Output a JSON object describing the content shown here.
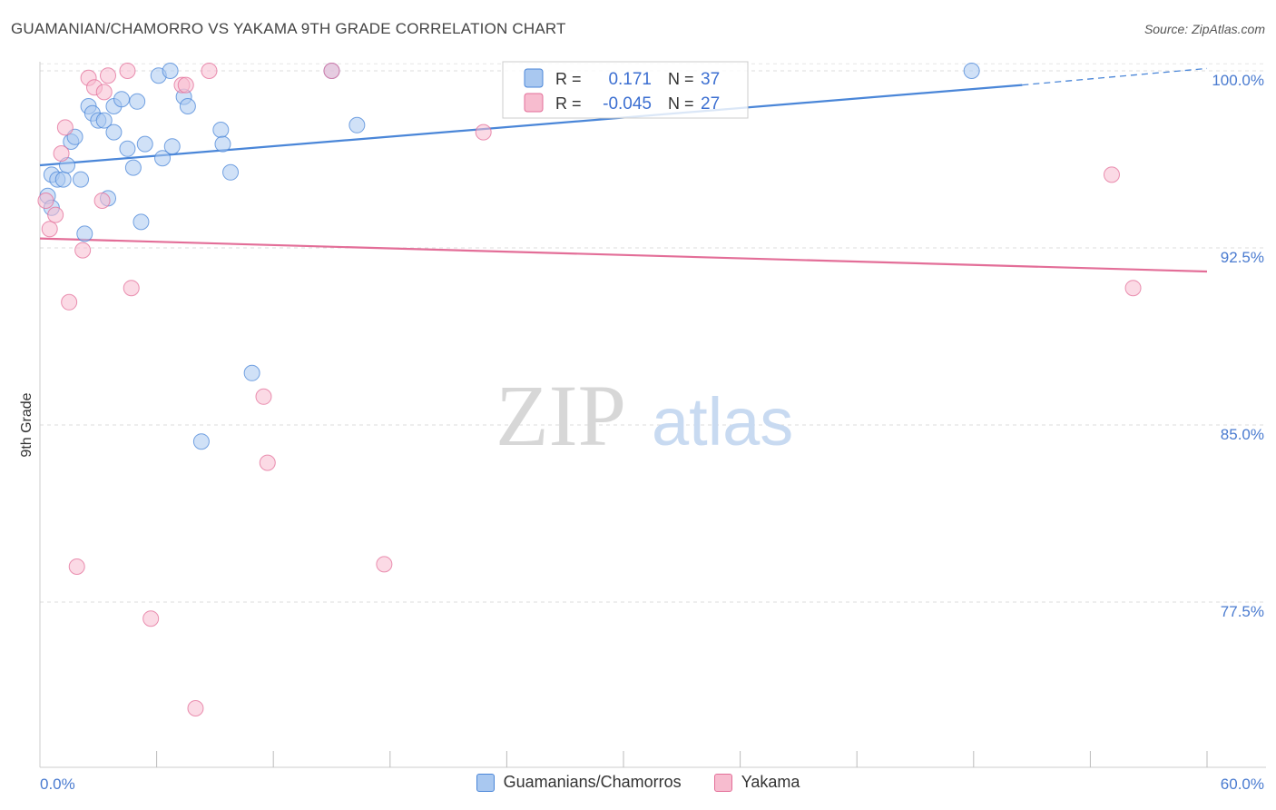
{
  "title": "GUAMANIAN/CHAMORRO VS YAKAMA 9TH GRADE CORRELATION CHART",
  "source": "Source: ZipAtlas.com",
  "watermark": {
    "zip": "ZIP",
    "atlas": "atlas"
  },
  "chart_data": {
    "type": "scatter",
    "xlabel": "",
    "ylabel": "9th Grade",
    "xlim": [
      0,
      60
    ],
    "ylim": [
      70.5,
      101
    ],
    "x_tick_labels": [
      "0.0%",
      "60.0%"
    ],
    "y_ticks": [
      77.5,
      85.0,
      92.5,
      100.0
    ],
    "y_tick_labels": [
      "77.5%",
      "85.0%",
      "92.5%",
      "100.0%"
    ],
    "grid": true,
    "legend": {
      "r_label": "R =",
      "n_label": "N =",
      "items": [
        {
          "r": "0.171",
          "n": "37"
        },
        {
          "r": "-0.045",
          "n": "27"
        }
      ]
    },
    "series": [
      {
        "name": "Guamanians/Chamorros",
        "color": "#4a86d8",
        "fill": "#a9c8f0",
        "trend": {
          "x0": 0,
          "y0": 96.0,
          "x1": 50.5,
          "y1": 99.4,
          "dash_x1": 60,
          "dash_y1": 100.1
        },
        "points": [
          [
            0.4,
            94.7
          ],
          [
            0.6,
            94.2
          ],
          [
            0.6,
            95.6
          ],
          [
            0.9,
            95.4
          ],
          [
            1.2,
            95.4
          ],
          [
            1.4,
            96.0
          ],
          [
            1.6,
            97.0
          ],
          [
            1.8,
            97.2
          ],
          [
            2.1,
            95.4
          ],
          [
            2.3,
            93.1
          ],
          [
            2.5,
            98.5
          ],
          [
            2.7,
            98.2
          ],
          [
            3.0,
            97.9
          ],
          [
            3.3,
            97.9
          ],
          [
            3.5,
            94.6
          ],
          [
            3.8,
            97.4
          ],
          [
            3.8,
            98.5
          ],
          [
            4.2,
            98.8
          ],
          [
            4.5,
            96.7
          ],
          [
            4.8,
            95.9
          ],
          [
            5.0,
            98.7
          ],
          [
            5.2,
            93.6
          ],
          [
            5.4,
            96.9
          ],
          [
            6.1,
            99.8
          ],
          [
            6.3,
            96.3
          ],
          [
            6.7,
            100.0
          ],
          [
            6.8,
            96.8
          ],
          [
            7.4,
            98.9
          ],
          [
            7.6,
            98.5
          ],
          [
            8.3,
            84.3
          ],
          [
            9.3,
            97.5
          ],
          [
            9.4,
            96.9
          ],
          [
            9.8,
            95.7
          ],
          [
            10.9,
            87.2
          ],
          [
            15.0,
            100.0
          ],
          [
            16.3,
            97.7
          ],
          [
            47.9,
            100.0
          ]
        ]
      },
      {
        "name": "Yakama",
        "color": "#e36e98",
        "fill": "#f7bccf",
        "trend": {
          "x0": 0,
          "y0": 92.9,
          "x1": 60,
          "y1": 91.5
        },
        "points": [
          [
            0.3,
            94.5
          ],
          [
            0.5,
            93.3
          ],
          [
            0.8,
            93.9
          ],
          [
            1.1,
            96.5
          ],
          [
            1.3,
            97.6
          ],
          [
            1.5,
            90.2
          ],
          [
            1.9,
            79.0
          ],
          [
            2.2,
            92.4
          ],
          [
            2.5,
            99.7
          ],
          [
            2.8,
            99.3
          ],
          [
            3.2,
            94.5
          ],
          [
            3.3,
            99.1
          ],
          [
            3.5,
            99.8
          ],
          [
            4.5,
            100.0
          ],
          [
            4.7,
            90.8
          ],
          [
            5.7,
            76.8
          ],
          [
            7.3,
            99.4
          ],
          [
            7.5,
            99.4
          ],
          [
            8.0,
            73.0
          ],
          [
            8.7,
            100.0
          ],
          [
            11.5,
            86.2
          ],
          [
            11.7,
            83.4
          ],
          [
            15.0,
            100.0
          ],
          [
            17.7,
            79.1
          ],
          [
            22.8,
            97.4
          ],
          [
            55.1,
            95.6
          ],
          [
            56.2,
            90.8
          ]
        ]
      }
    ]
  }
}
